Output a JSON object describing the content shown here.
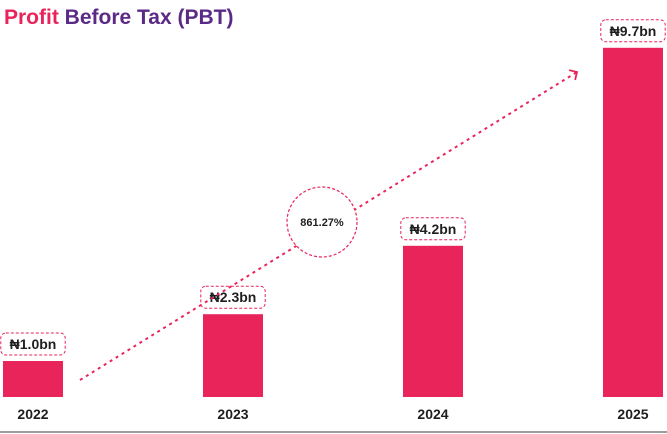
{
  "title": {
    "part1": "Profit",
    "part2": "Before Tax (PBT)"
  },
  "colors": {
    "bar": "#E8245A",
    "title_accent": "#E8245A",
    "title_main": "#5B2A86",
    "text": "#1f1f1f"
  },
  "chart_data": {
    "type": "bar",
    "title": "Profit Before Tax (PBT)",
    "categories": [
      "2022",
      "2023",
      "2024",
      "2025"
    ],
    "values": [
      1.0,
      2.3,
      4.2,
      9.7
    ],
    "value_labels": [
      "₦1.0bn",
      "₦2.3bn",
      "₦4.2bn",
      "₦9.7bn"
    ],
    "unit": "₦ bn",
    "annotation": "861.27%",
    "trend_arrow": true,
    "grid": false,
    "legend": "none"
  }
}
